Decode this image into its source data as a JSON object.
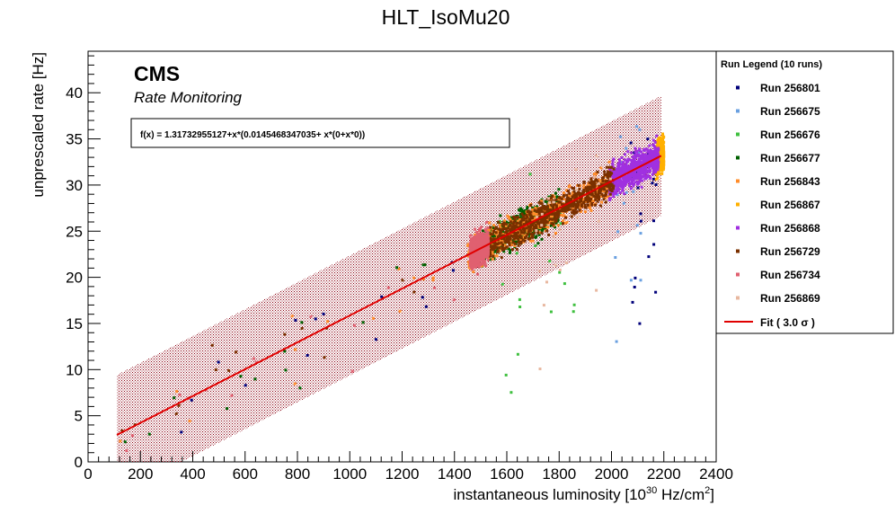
{
  "chart_data": {
    "type": "scatter",
    "title": "HLT_IsoMu20",
    "xlabel": "instantaneous luminosity [10",
    "xlabel_exp": "30",
    "xlabel_units": " Hz/cm",
    "xlabel_exp2": "2",
    "xlabel_close": "]",
    "ylabel": "unprescaled rate [Hz]",
    "xlim": [
      0,
      2400
    ],
    "ylim": [
      0,
      44.5
    ],
    "xticks": [
      0,
      200,
      400,
      600,
      800,
      1000,
      1200,
      1400,
      1600,
      1800,
      2000,
      2200,
      2400
    ],
    "yticks": [
      0,
      5,
      10,
      15,
      20,
      25,
      30,
      35,
      40
    ],
    "banner": "CMS",
    "banner_sub": "Rate Monitoring",
    "fit_formula": "f(x) = 1.31732955127+x*(0.0145468347035+ x*(0+x*0))",
    "fit": {
      "intercept": 1.31732955127,
      "slope": 0.0145468347035,
      "x_range": [
        110,
        2190
      ],
      "band_halfwidth": 6.5,
      "color": "#e00000"
    },
    "legend_title": "Run Legend (10 runs)",
    "series": [
      {
        "name": "Run 256801",
        "color": "#00007a",
        "x_range": [
          2060,
          2180
        ],
        "density": "sparse"
      },
      {
        "name": "Run 256675",
        "color": "#6aa0e0",
        "x_range": [
          2000,
          2120
        ],
        "density": "sparse"
      },
      {
        "name": "Run 256676",
        "color": "#40c040",
        "x_range": [
          1560,
          1860
        ],
        "density": "sparse"
      },
      {
        "name": "Run 256677",
        "color": "#006000",
        "x_range": [
          1500,
          1800
        ],
        "density": "dense"
      },
      {
        "name": "Run 256843",
        "color": "#ff8c2a",
        "x_range": [
          1450,
          2000
        ],
        "density": "dense"
      },
      {
        "name": "Run 256867",
        "color": "#ffb000",
        "x_range": [
          2170,
          2200
        ],
        "density": "dense"
      },
      {
        "name": "Run 256868",
        "color": "#a030e0",
        "x_range": [
          1990,
          2180
        ],
        "density": "dense"
      },
      {
        "name": "Run 256729",
        "color": "#7a3000",
        "x_range": [
          1530,
          2010
        ],
        "density": "dense"
      },
      {
        "name": "Run 256734",
        "color": "#e06070",
        "x_range": [
          1460,
          1530
        ],
        "density": "dense"
      },
      {
        "name": "Run 256869",
        "color": "#e8b8a0",
        "x_range": [
          1700,
          2000
        ],
        "density": "sparse"
      }
    ],
    "fit_legend": "Fit ( 3.0 σ )"
  }
}
